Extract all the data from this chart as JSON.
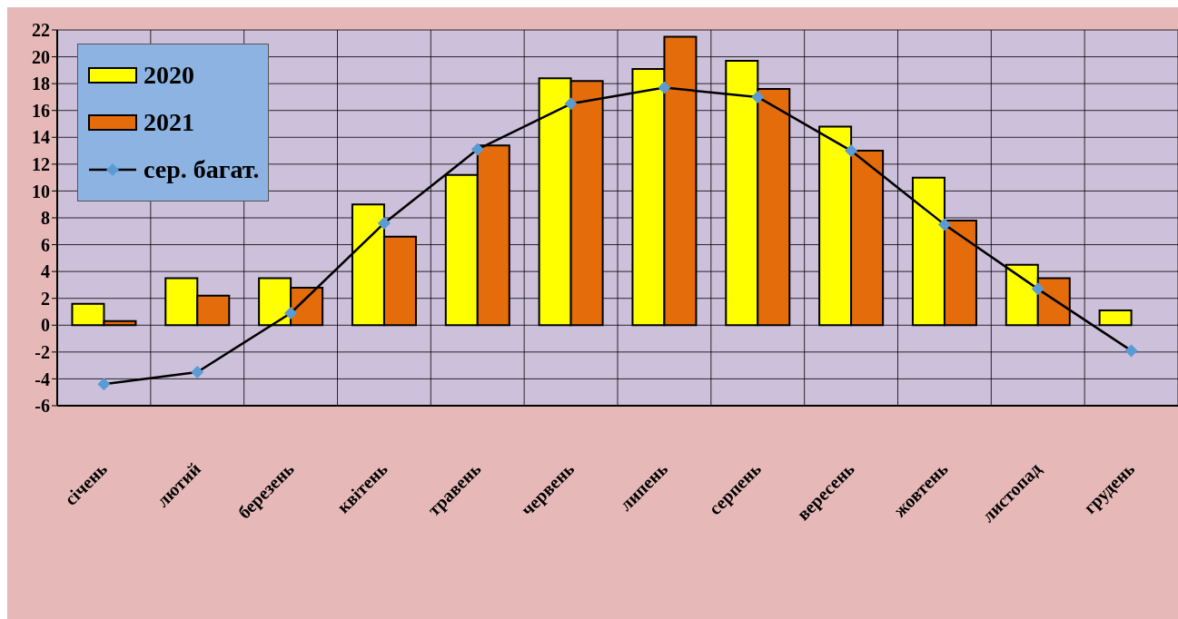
{
  "chart_data": {
    "type": "bar",
    "categories": [
      "січень",
      "лютий",
      "березень",
      "квітень",
      "травень",
      "червень",
      "липень",
      "серпень",
      "вересень",
      "жовтень",
      "листопад",
      "грудень"
    ],
    "series": [
      {
        "name": "2020",
        "color": "#ffff00",
        "values": [
          1.6,
          3.5,
          3.5,
          9.0,
          11.2,
          18.4,
          19.1,
          19.7,
          14.8,
          11.0,
          4.5,
          1.1
        ]
      },
      {
        "name": "2021",
        "color": "#e46c0a",
        "values": [
          0.3,
          2.2,
          2.8,
          6.6,
          13.4,
          18.2,
          21.5,
          17.6,
          13.0,
          7.8,
          3.5,
          null
        ]
      },
      {
        "name": "сер. багат.",
        "type": "line",
        "color": "#000000",
        "marker": "diamond",
        "values": [
          -4.4,
          -3.5,
          0.9,
          7.6,
          13.1,
          16.5,
          17.7,
          17.0,
          13.0,
          7.5,
          2.7,
          -1.9
        ]
      }
    ],
    "ylim": [
      -6,
      22
    ],
    "yticks": [
      -6,
      -4,
      -2,
      0,
      2,
      4,
      6,
      8,
      10,
      12,
      14,
      16,
      18,
      20,
      22
    ],
    "grid": true,
    "legend": "top left"
  }
}
